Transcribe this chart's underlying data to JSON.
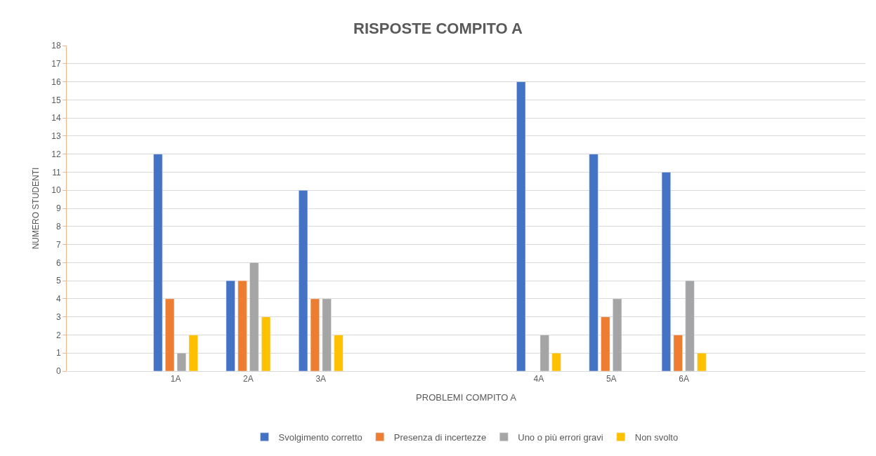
{
  "chart_data": {
    "type": "bar",
    "title": "RISPOSTE COMPITO A",
    "xlabel": "PROBLEMI COMPITO A",
    "ylabel": "NUMERO STUDENTI",
    "categories": [
      null,
      "1A",
      "2A",
      "3A",
      null,
      null,
      "4A",
      "5A",
      "6A",
      null,
      null
    ],
    "series": [
      {
        "name": "Svolgimento corretto",
        "color": "#4472c4",
        "values": [
          null,
          12,
          5,
          10,
          null,
          null,
          16,
          12,
          11,
          null,
          null
        ]
      },
      {
        "name": "Presenza di incertezze",
        "color": "#ed7d31",
        "values": [
          null,
          4,
          5,
          4,
          null,
          null,
          null,
          3,
          2,
          null,
          null
        ]
      },
      {
        "name": "Uno o più errori gravi",
        "color": "#a5a5a5",
        "values": [
          null,
          1,
          6,
          4,
          null,
          null,
          2,
          4,
          5,
          null,
          null
        ]
      },
      {
        "name": "Non svolto",
        "color": "#ffc000",
        "values": [
          null,
          2,
          3,
          2,
          null,
          null,
          1,
          null,
          1,
          null,
          null
        ]
      }
    ],
    "ylim": [
      0,
      18
    ],
    "yticks": [
      0,
      1,
      2,
      3,
      4,
      5,
      6,
      7,
      8,
      9,
      10,
      11,
      12,
      13,
      14,
      15,
      16,
      17,
      18
    ],
    "grid": "y",
    "legend": "bottom"
  }
}
